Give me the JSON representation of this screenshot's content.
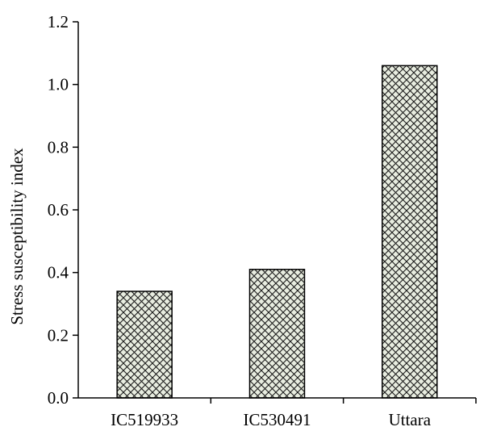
{
  "chart_data": {
    "type": "bar",
    "categories": [
      "IC519933",
      "IC530491",
      "Uttara"
    ],
    "values": [
      0.34,
      0.41,
      1.06
    ],
    "title": "",
    "xlabel": "",
    "ylabel": "Stress susceptibility index",
    "ylim": [
      0,
      1.2
    ],
    "yticks": [
      "0.0",
      "0.2",
      "0.4",
      "0.6",
      "0.8",
      "1.0",
      "1.2"
    ],
    "grid": false,
    "legend": "none",
    "bar_fill": "crosshatch",
    "colors": {
      "bar_fill": "#e8ede0",
      "hatch": "#1a1a1a",
      "axis": "#000000"
    }
  }
}
